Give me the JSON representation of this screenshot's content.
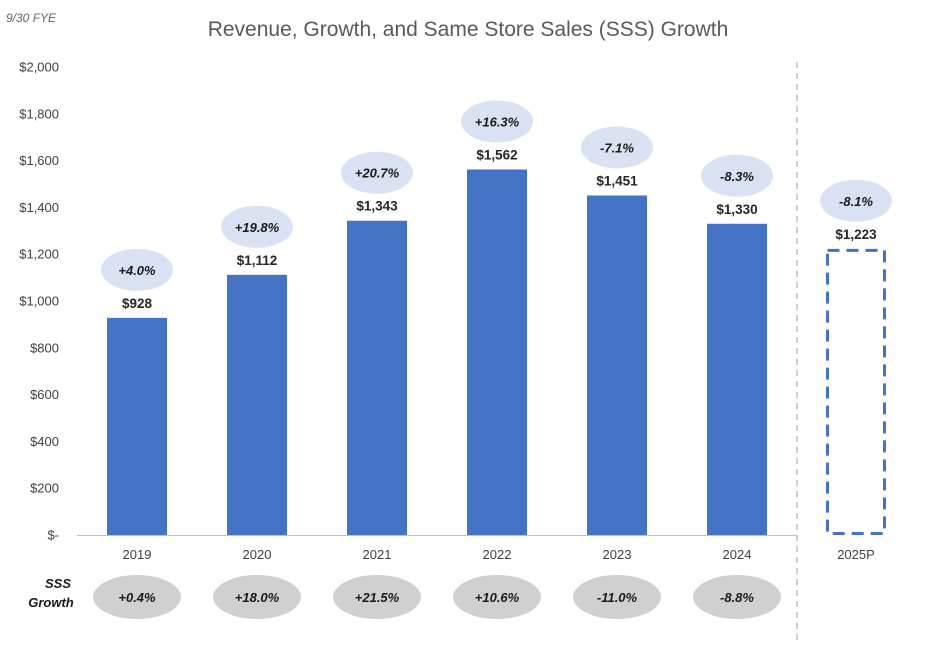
{
  "header": {
    "fye_note": "9/30 FYE"
  },
  "chart_data": {
    "type": "bar",
    "title": "Revenue, Growth, and Same Store Sales (SSS) Growth",
    "xlabel": "",
    "ylabel": "",
    "ylim": [
      0,
      2000
    ],
    "y_ticks": [
      0,
      200,
      400,
      600,
      800,
      1000,
      1200,
      1400,
      1600,
      1800,
      2000
    ],
    "y_tick_labels": [
      "$-",
      "$200",
      "$400",
      "$600",
      "$800",
      "$1,000",
      "$1,200",
      "$1,400",
      "$1,600",
      "$1,800",
      "$2,000"
    ],
    "categories": [
      "2019",
      "2020",
      "2021",
      "2022",
      "2023",
      "2024",
      "2025P"
    ],
    "values": [
      928,
      1112,
      1343,
      1562,
      1451,
      1330,
      1223
    ],
    "value_labels": [
      "$928",
      "$1,112",
      "$1,343",
      "$1,562",
      "$1,451",
      "$1,330",
      "$1,223"
    ],
    "projected": [
      false,
      false,
      false,
      false,
      false,
      false,
      true
    ],
    "revenue_growth_labels": [
      "+4.0%",
      "+19.8%",
      "+20.7%",
      "+16.3%",
      "-7.1%",
      "-8.3%",
      "-8.1%"
    ],
    "sss_growth_title_line1": "SSS",
    "sss_growth_title_line2": "Growth",
    "sss_growth_labels": [
      "+0.4%",
      "+18.0%",
      "+21.5%",
      "+10.6%",
      "-11.0%",
      "-8.8%",
      ""
    ],
    "colors": {
      "bar": "#4472c4",
      "projected_outline": "#4472c4",
      "growth_bubble": "#d9e2f3",
      "sss_bubble": "#d0d0d0",
      "axis": "#bfbfbf",
      "divider": "#bfbfbf"
    }
  }
}
